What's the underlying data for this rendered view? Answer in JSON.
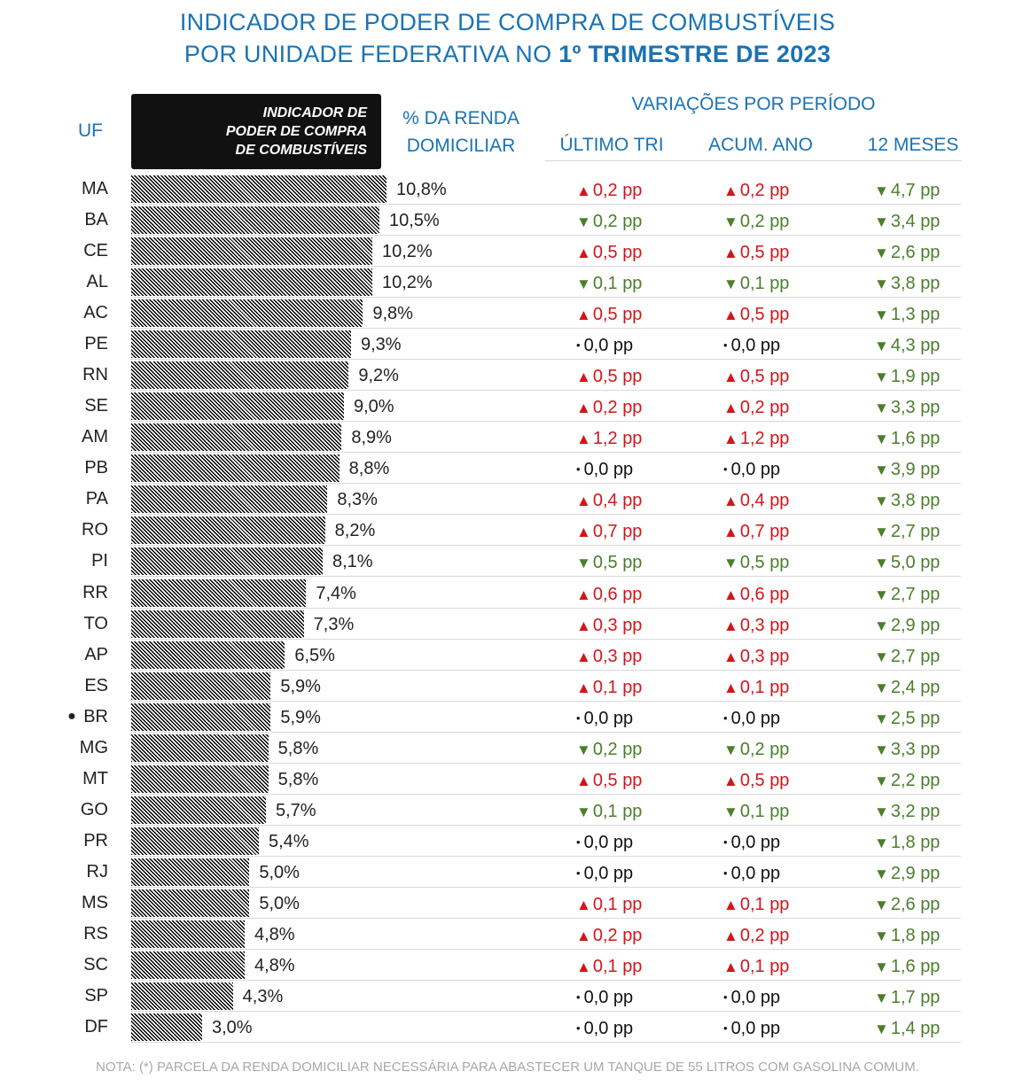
{
  "title": {
    "line1": "INDICADOR DE PODER DE COMPRA DE COMBUSTÍVEIS",
    "line2_prefix": "POR UNIDADE FEDERATIVA NO ",
    "line2_bold": "1º TRIMESTRE DE 2023"
  },
  "headers": {
    "uf": "UF",
    "indicator_line1": "INDICADOR DE",
    "indicator_line2": "PODER DE COMPRA",
    "indicator_line3": "DE COMBUSTÍVEIS",
    "renda_line1": "% DA RENDA",
    "renda_line2": "DOMICILIAR",
    "variacoes": "VARIAÇÕES POR PERÍODO",
    "col_ultimo": "ÚLTIMO TRI",
    "col_acum": "ACUM. ANO",
    "col_12m": "12 MESES"
  },
  "colors": {
    "up": "#d2161b",
    "down": "#4a7f2c",
    "flat": "#111111",
    "accent": "#1a73b5"
  },
  "chart_data": {
    "type": "bar",
    "orientation": "horizontal",
    "unit": "%",
    "categories": [
      "MA",
      "BA",
      "CE",
      "AL",
      "AC",
      "PE",
      "RN",
      "SE",
      "AM",
      "PB",
      "PA",
      "RO",
      "PI",
      "RR",
      "TO",
      "AP",
      "ES",
      "BR",
      "MG",
      "MT",
      "GO",
      "PR",
      "RJ",
      "MS",
      "RS",
      "SC",
      "SP",
      "DF"
    ],
    "values": [
      10.8,
      10.5,
      10.2,
      10.2,
      9.8,
      9.3,
      9.2,
      9.0,
      8.9,
      8.8,
      8.3,
      8.2,
      8.1,
      7.4,
      7.3,
      6.5,
      5.9,
      5.9,
      5.8,
      5.8,
      5.7,
      5.4,
      5.0,
      5.0,
      4.8,
      4.8,
      4.3,
      3.0
    ],
    "highlight": "BR",
    "rows": [
      {
        "uf": "MA",
        "pct": "10,8%",
        "v1": {
          "d": "up",
          "t": "0,2 pp"
        },
        "v2": {
          "d": "up",
          "t": "0,2 pp"
        },
        "v3": {
          "d": "down",
          "t": "4,7 pp"
        }
      },
      {
        "uf": "BA",
        "pct": "10,5%",
        "v1": {
          "d": "down",
          "t": "0,2 pp"
        },
        "v2": {
          "d": "down",
          "t": "0,2 pp"
        },
        "v3": {
          "d": "down",
          "t": "3,4 pp"
        }
      },
      {
        "uf": "CE",
        "pct": "10,2%",
        "v1": {
          "d": "up",
          "t": "0,5 pp"
        },
        "v2": {
          "d": "up",
          "t": "0,5 pp"
        },
        "v3": {
          "d": "down",
          "t": "2,6 pp"
        }
      },
      {
        "uf": "AL",
        "pct": "10,2%",
        "v1": {
          "d": "down",
          "t": "0,1 pp"
        },
        "v2": {
          "d": "down",
          "t": "0,1 pp"
        },
        "v3": {
          "d": "down",
          "t": "3,8 pp"
        }
      },
      {
        "uf": "AC",
        "pct": "9,8%",
        "v1": {
          "d": "up",
          "t": "0,5 pp"
        },
        "v2": {
          "d": "up",
          "t": "0,5 pp"
        },
        "v3": {
          "d": "down",
          "t": "1,3 pp"
        }
      },
      {
        "uf": "PE",
        "pct": "9,3%",
        "v1": {
          "d": "flat",
          "t": "0,0 pp"
        },
        "v2": {
          "d": "flat",
          "t": "0,0 pp"
        },
        "v3": {
          "d": "down",
          "t": "4,3 pp"
        }
      },
      {
        "uf": "RN",
        "pct": "9,2%",
        "v1": {
          "d": "up",
          "t": "0,5 pp"
        },
        "v2": {
          "d": "up",
          "t": "0,5 pp"
        },
        "v3": {
          "d": "down",
          "t": "1,9 pp"
        }
      },
      {
        "uf": "SE",
        "pct": "9,0%",
        "v1": {
          "d": "up",
          "t": "0,2 pp"
        },
        "v2": {
          "d": "up",
          "t": "0,2 pp"
        },
        "v3": {
          "d": "down",
          "t": "3,3 pp"
        }
      },
      {
        "uf": "AM",
        "pct": "8,9%",
        "v1": {
          "d": "up",
          "t": "1,2 pp"
        },
        "v2": {
          "d": "up",
          "t": "1,2 pp"
        },
        "v3": {
          "d": "down",
          "t": "1,6 pp"
        }
      },
      {
        "uf": "PB",
        "pct": "8,8%",
        "v1": {
          "d": "flat",
          "t": "0,0 pp"
        },
        "v2": {
          "d": "flat",
          "t": "0,0 pp"
        },
        "v3": {
          "d": "down",
          "t": "3,9 pp"
        }
      },
      {
        "uf": "PA",
        "pct": "8,3%",
        "v1": {
          "d": "up",
          "t": "0,4 pp"
        },
        "v2": {
          "d": "up",
          "t": "0,4 pp"
        },
        "v3": {
          "d": "down",
          "t": "3,8 pp"
        }
      },
      {
        "uf": "RO",
        "pct": "8,2%",
        "v1": {
          "d": "up",
          "t": "0,7 pp"
        },
        "v2": {
          "d": "up",
          "t": "0,7 pp"
        },
        "v3": {
          "d": "down",
          "t": "2,7 pp"
        }
      },
      {
        "uf": "PI",
        "pct": "8,1%",
        "v1": {
          "d": "down",
          "t": "0,5 pp"
        },
        "v2": {
          "d": "down",
          "t": "0,5 pp"
        },
        "v3": {
          "d": "down",
          "t": "5,0 pp"
        }
      },
      {
        "uf": "RR",
        "pct": "7,4%",
        "v1": {
          "d": "up",
          "t": "0,6 pp"
        },
        "v2": {
          "d": "up",
          "t": "0,6 pp"
        },
        "v3": {
          "d": "down",
          "t": "2,7 pp"
        }
      },
      {
        "uf": "TO",
        "pct": "7,3%",
        "v1": {
          "d": "up",
          "t": "0,3 pp"
        },
        "v2": {
          "d": "up",
          "t": "0,3 pp"
        },
        "v3": {
          "d": "down",
          "t": "2,9 pp"
        }
      },
      {
        "uf": "AP",
        "pct": "6,5%",
        "v1": {
          "d": "up",
          "t": "0,3 pp"
        },
        "v2": {
          "d": "up",
          "t": "0,3 pp"
        },
        "v3": {
          "d": "down",
          "t": "2,7 pp"
        }
      },
      {
        "uf": "ES",
        "pct": "5,9%",
        "v1": {
          "d": "up",
          "t": "0,1 pp"
        },
        "v2": {
          "d": "up",
          "t": "0,1 pp"
        },
        "v3": {
          "d": "down",
          "t": "2,4 pp"
        }
      },
      {
        "uf": "BR",
        "pct": "5,9%",
        "v1": {
          "d": "flat",
          "t": "0,0 pp"
        },
        "v2": {
          "d": "flat",
          "t": "0,0 pp"
        },
        "v3": {
          "d": "down",
          "t": "2,5 pp"
        }
      },
      {
        "uf": "MG",
        "pct": "5,8%",
        "v1": {
          "d": "down",
          "t": "0,2 pp"
        },
        "v2": {
          "d": "down",
          "t": "0,2 pp"
        },
        "v3": {
          "d": "down",
          "t": "3,3 pp"
        }
      },
      {
        "uf": "MT",
        "pct": "5,8%",
        "v1": {
          "d": "up",
          "t": "0,5 pp"
        },
        "v2": {
          "d": "up",
          "t": "0,5 pp"
        },
        "v3": {
          "d": "down",
          "t": "2,2 pp"
        }
      },
      {
        "uf": "GO",
        "pct": "5,7%",
        "v1": {
          "d": "down",
          "t": "0,1 pp"
        },
        "v2": {
          "d": "down",
          "t": "0,1 pp"
        },
        "v3": {
          "d": "down",
          "t": "3,2 pp"
        }
      },
      {
        "uf": "PR",
        "pct": "5,4%",
        "v1": {
          "d": "flat",
          "t": "0,0 pp"
        },
        "v2": {
          "d": "flat",
          "t": "0,0 pp"
        },
        "v3": {
          "d": "down",
          "t": "1,8 pp"
        }
      },
      {
        "uf": "RJ",
        "pct": "5,0%",
        "v1": {
          "d": "flat",
          "t": "0,0 pp"
        },
        "v2": {
          "d": "flat",
          "t": "0,0 pp"
        },
        "v3": {
          "d": "down",
          "t": "2,9 pp"
        }
      },
      {
        "uf": "MS",
        "pct": "5,0%",
        "v1": {
          "d": "up",
          "t": "0,1 pp"
        },
        "v2": {
          "d": "up",
          "t": "0,1 pp"
        },
        "v3": {
          "d": "down",
          "t": "2,6 pp"
        }
      },
      {
        "uf": "RS",
        "pct": "4,8%",
        "v1": {
          "d": "up",
          "t": "0,2 pp"
        },
        "v2": {
          "d": "up",
          "t": "0,2 pp"
        },
        "v3": {
          "d": "down",
          "t": "1,8 pp"
        }
      },
      {
        "uf": "SC",
        "pct": "4,8%",
        "v1": {
          "d": "up",
          "t": "0,1 pp"
        },
        "v2": {
          "d": "up",
          "t": "0,1 pp"
        },
        "v3": {
          "d": "down",
          "t": "1,6 pp"
        }
      },
      {
        "uf": "SP",
        "pct": "4,3%",
        "v1": {
          "d": "flat",
          "t": "0,0 pp"
        },
        "v2": {
          "d": "flat",
          "t": "0,0 pp"
        },
        "v3": {
          "d": "down",
          "t": "1,7 pp"
        }
      },
      {
        "uf": "DF",
        "pct": "3,0%",
        "v1": {
          "d": "flat",
          "t": "0,0 pp"
        },
        "v2": {
          "d": "flat",
          "t": "0,0 pp"
        },
        "v3": {
          "d": "down",
          "t": "1,4 pp"
        }
      }
    ]
  },
  "note": "NOTA: (*) PARCELA DA RENDA DOMICILIAR NECESSÁRIA PARA ABASTECER UM TANQUE DE 55 LITROS COM GASOLINA COMUM."
}
